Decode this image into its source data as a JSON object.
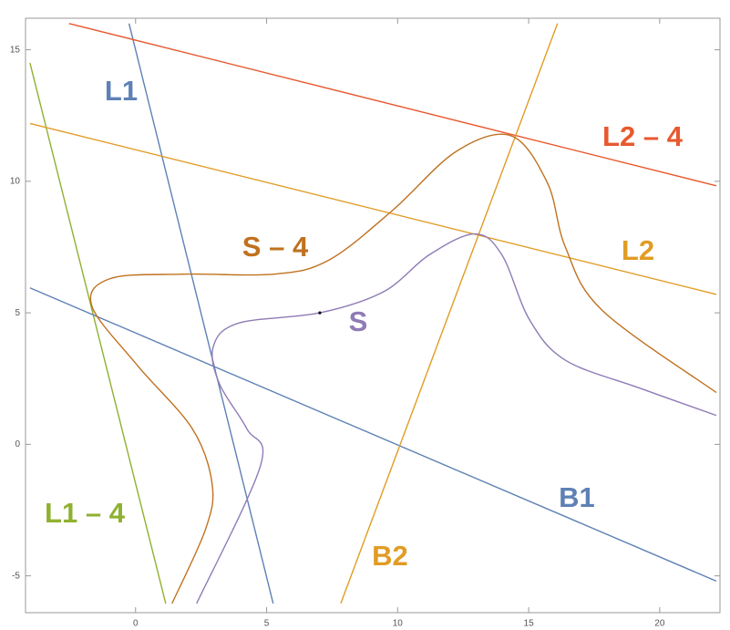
{
  "chart_data": {
    "type": "line",
    "frame": true,
    "xlim": [
      -4.2,
      22.3
    ],
    "ylim": [
      -6.4,
      16.2
    ],
    "xticks": [
      0,
      5,
      10,
      15,
      20
    ],
    "yticks": [
      -5,
      0,
      5,
      10,
      15
    ],
    "series": [
      {
        "name": "L1",
        "color": "#5e81b5",
        "smooth": false,
        "x": [
          -0.25,
          5.25
        ],
        "values": [
          16.0,
          -6.05
        ]
      },
      {
        "name": "L1 – 4",
        "color": "#8fb131",
        "smooth": false,
        "x": [
          -4.03,
          1.15
        ],
        "values": [
          14.5,
          -6.05
        ]
      },
      {
        "name": "L2",
        "color": "#e19c24",
        "smooth": false,
        "x": [
          -4.03,
          22.16
        ],
        "values": [
          12.2,
          5.7
        ]
      },
      {
        "name": "L2 – 4",
        "color": "#e8582f",
        "smooth": false,
        "x": [
          -2.54,
          22.16
        ],
        "values": [
          16.0,
          9.83
        ]
      },
      {
        "name": "B1",
        "color": "#5e81b5",
        "smooth": false,
        "x": [
          -4.03,
          22.16
        ],
        "values": [
          5.95,
          -5.2
        ]
      },
      {
        "name": "B2",
        "color": "#e19c24",
        "smooth": false,
        "x": [
          7.83,
          16.1
        ],
        "values": [
          -6.05,
          16.0
        ]
      },
      {
        "name": "S",
        "color": "#8f7bb6",
        "smooth": true,
        "x": [
          2.33,
          4.77,
          4.24,
          3.2,
          2.96,
          3.9,
          7.03,
          9.46,
          11.2,
          12.94,
          13.98,
          15.03,
          16.4,
          19.2,
          22.16
        ],
        "values": [
          -6.05,
          -0.8,
          0.6,
          2.3,
          3.7,
          4.6,
          5.0,
          5.8,
          7.2,
          8.0,
          7.2,
          4.74,
          3.2,
          2.15,
          1.1
        ]
      },
      {
        "name": "S – 4",
        "color": "#c0711f",
        "smooth": true,
        "x": [
          1.39,
          2.68,
          2.92,
          2.16,
          0.07,
          -1.67,
          -0.97,
          1.81,
          5.29,
          7.37,
          9.81,
          12.24,
          14.33,
          15.72,
          16.4,
          17.8,
          22.16
        ],
        "values": [
          -6.05,
          -3.2,
          -1.5,
          0.6,
          3.0,
          5.26,
          6.3,
          6.47,
          6.47,
          7.0,
          8.9,
          11.14,
          11.73,
          9.93,
          7.5,
          5.1,
          1.97
        ]
      }
    ],
    "point": {
      "x": 7.03,
      "y": 5.0,
      "color": "#000000"
    }
  }
}
